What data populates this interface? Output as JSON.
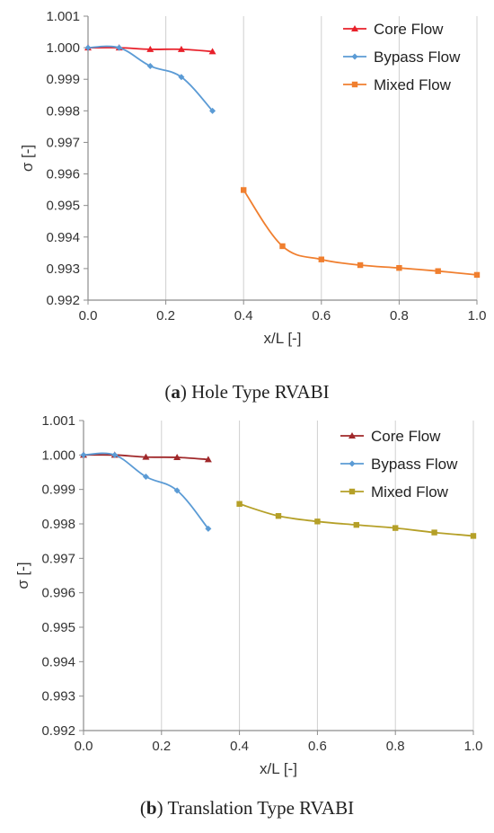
{
  "chart_data": [
    {
      "type": "line",
      "caption_letter": "a",
      "caption_text": " Hole Type RVABI",
      "xlabel": "x/L [-]",
      "ylabel": "σ [-]",
      "xlim": [
        0.0,
        1.0
      ],
      "ylim": [
        0.992,
        1.001
      ],
      "x_ticks": [
        "0.0",
        "0.2",
        "0.4",
        "0.6",
        "0.8",
        "1.0"
      ],
      "y_ticks": [
        "0.992",
        "0.993",
        "0.994",
        "0.995",
        "0.996",
        "0.997",
        "0.998",
        "0.999",
        "1.000",
        "1.001"
      ],
      "grid": "vertical",
      "legend_position": "top-right",
      "series": [
        {
          "name": "Core Flow",
          "color": "#e8202a",
          "marker": "triangle",
          "x": [
            0.0,
            0.08,
            0.16,
            0.24,
            0.32
          ],
          "y": [
            1.0,
            1.0,
            0.99995,
            0.99995,
            0.99988
          ]
        },
        {
          "name": "Bypass Flow",
          "color": "#5b9bd5",
          "marker": "diamond",
          "x": [
            0.0,
            0.08,
            0.16,
            0.24,
            0.32
          ],
          "y": [
            1.0,
            1.0,
            0.99942,
            0.99907,
            0.998
          ]
        },
        {
          "name": "Mixed Flow",
          "color": "#f07f2f",
          "marker": "square",
          "x": [
            0.4,
            0.5,
            0.6,
            0.7,
            0.8,
            0.9,
            1.0
          ],
          "y": [
            0.99549,
            0.99371,
            0.99329,
            0.99311,
            0.99302,
            0.99292,
            0.9928
          ]
        }
      ]
    },
    {
      "type": "line",
      "caption_letter": "b",
      "caption_text": " Translation Type RVABI",
      "xlabel": "x/L [-]",
      "ylabel": "σ [-]",
      "xlim": [
        0.0,
        1.0
      ],
      "ylim": [
        0.992,
        1.001
      ],
      "x_ticks": [
        "0.0",
        "0.2",
        "0.4",
        "0.6",
        "0.8",
        "1.0"
      ],
      "y_ticks": [
        "0.992",
        "0.993",
        "0.994",
        "0.995",
        "0.996",
        "0.997",
        "0.998",
        "0.999",
        "1.000",
        "1.001"
      ],
      "grid": "vertical",
      "legend_position": "top-right",
      "series": [
        {
          "name": "Core Flow",
          "color": "#a0282a",
          "marker": "triangle",
          "x": [
            0.0,
            0.08,
            0.16,
            0.24,
            0.32
          ],
          "y": [
            1.0,
            1.0,
            0.99994,
            0.99993,
            0.99987
          ]
        },
        {
          "name": "Bypass Flow",
          "color": "#5b9bd5",
          "marker": "diamond",
          "x": [
            0.0,
            0.08,
            0.16,
            0.24,
            0.32
          ],
          "y": [
            1.0,
            1.0,
            0.99937,
            0.99897,
            0.99786
          ]
        },
        {
          "name": "Mixed Flow",
          "color": "#b5a028",
          "marker": "square",
          "x": [
            0.4,
            0.5,
            0.6,
            0.7,
            0.8,
            0.9,
            1.0
          ],
          "y": [
            0.99858,
            0.99823,
            0.99807,
            0.99797,
            0.99788,
            0.99775,
            0.99765
          ]
        }
      ]
    }
  ]
}
